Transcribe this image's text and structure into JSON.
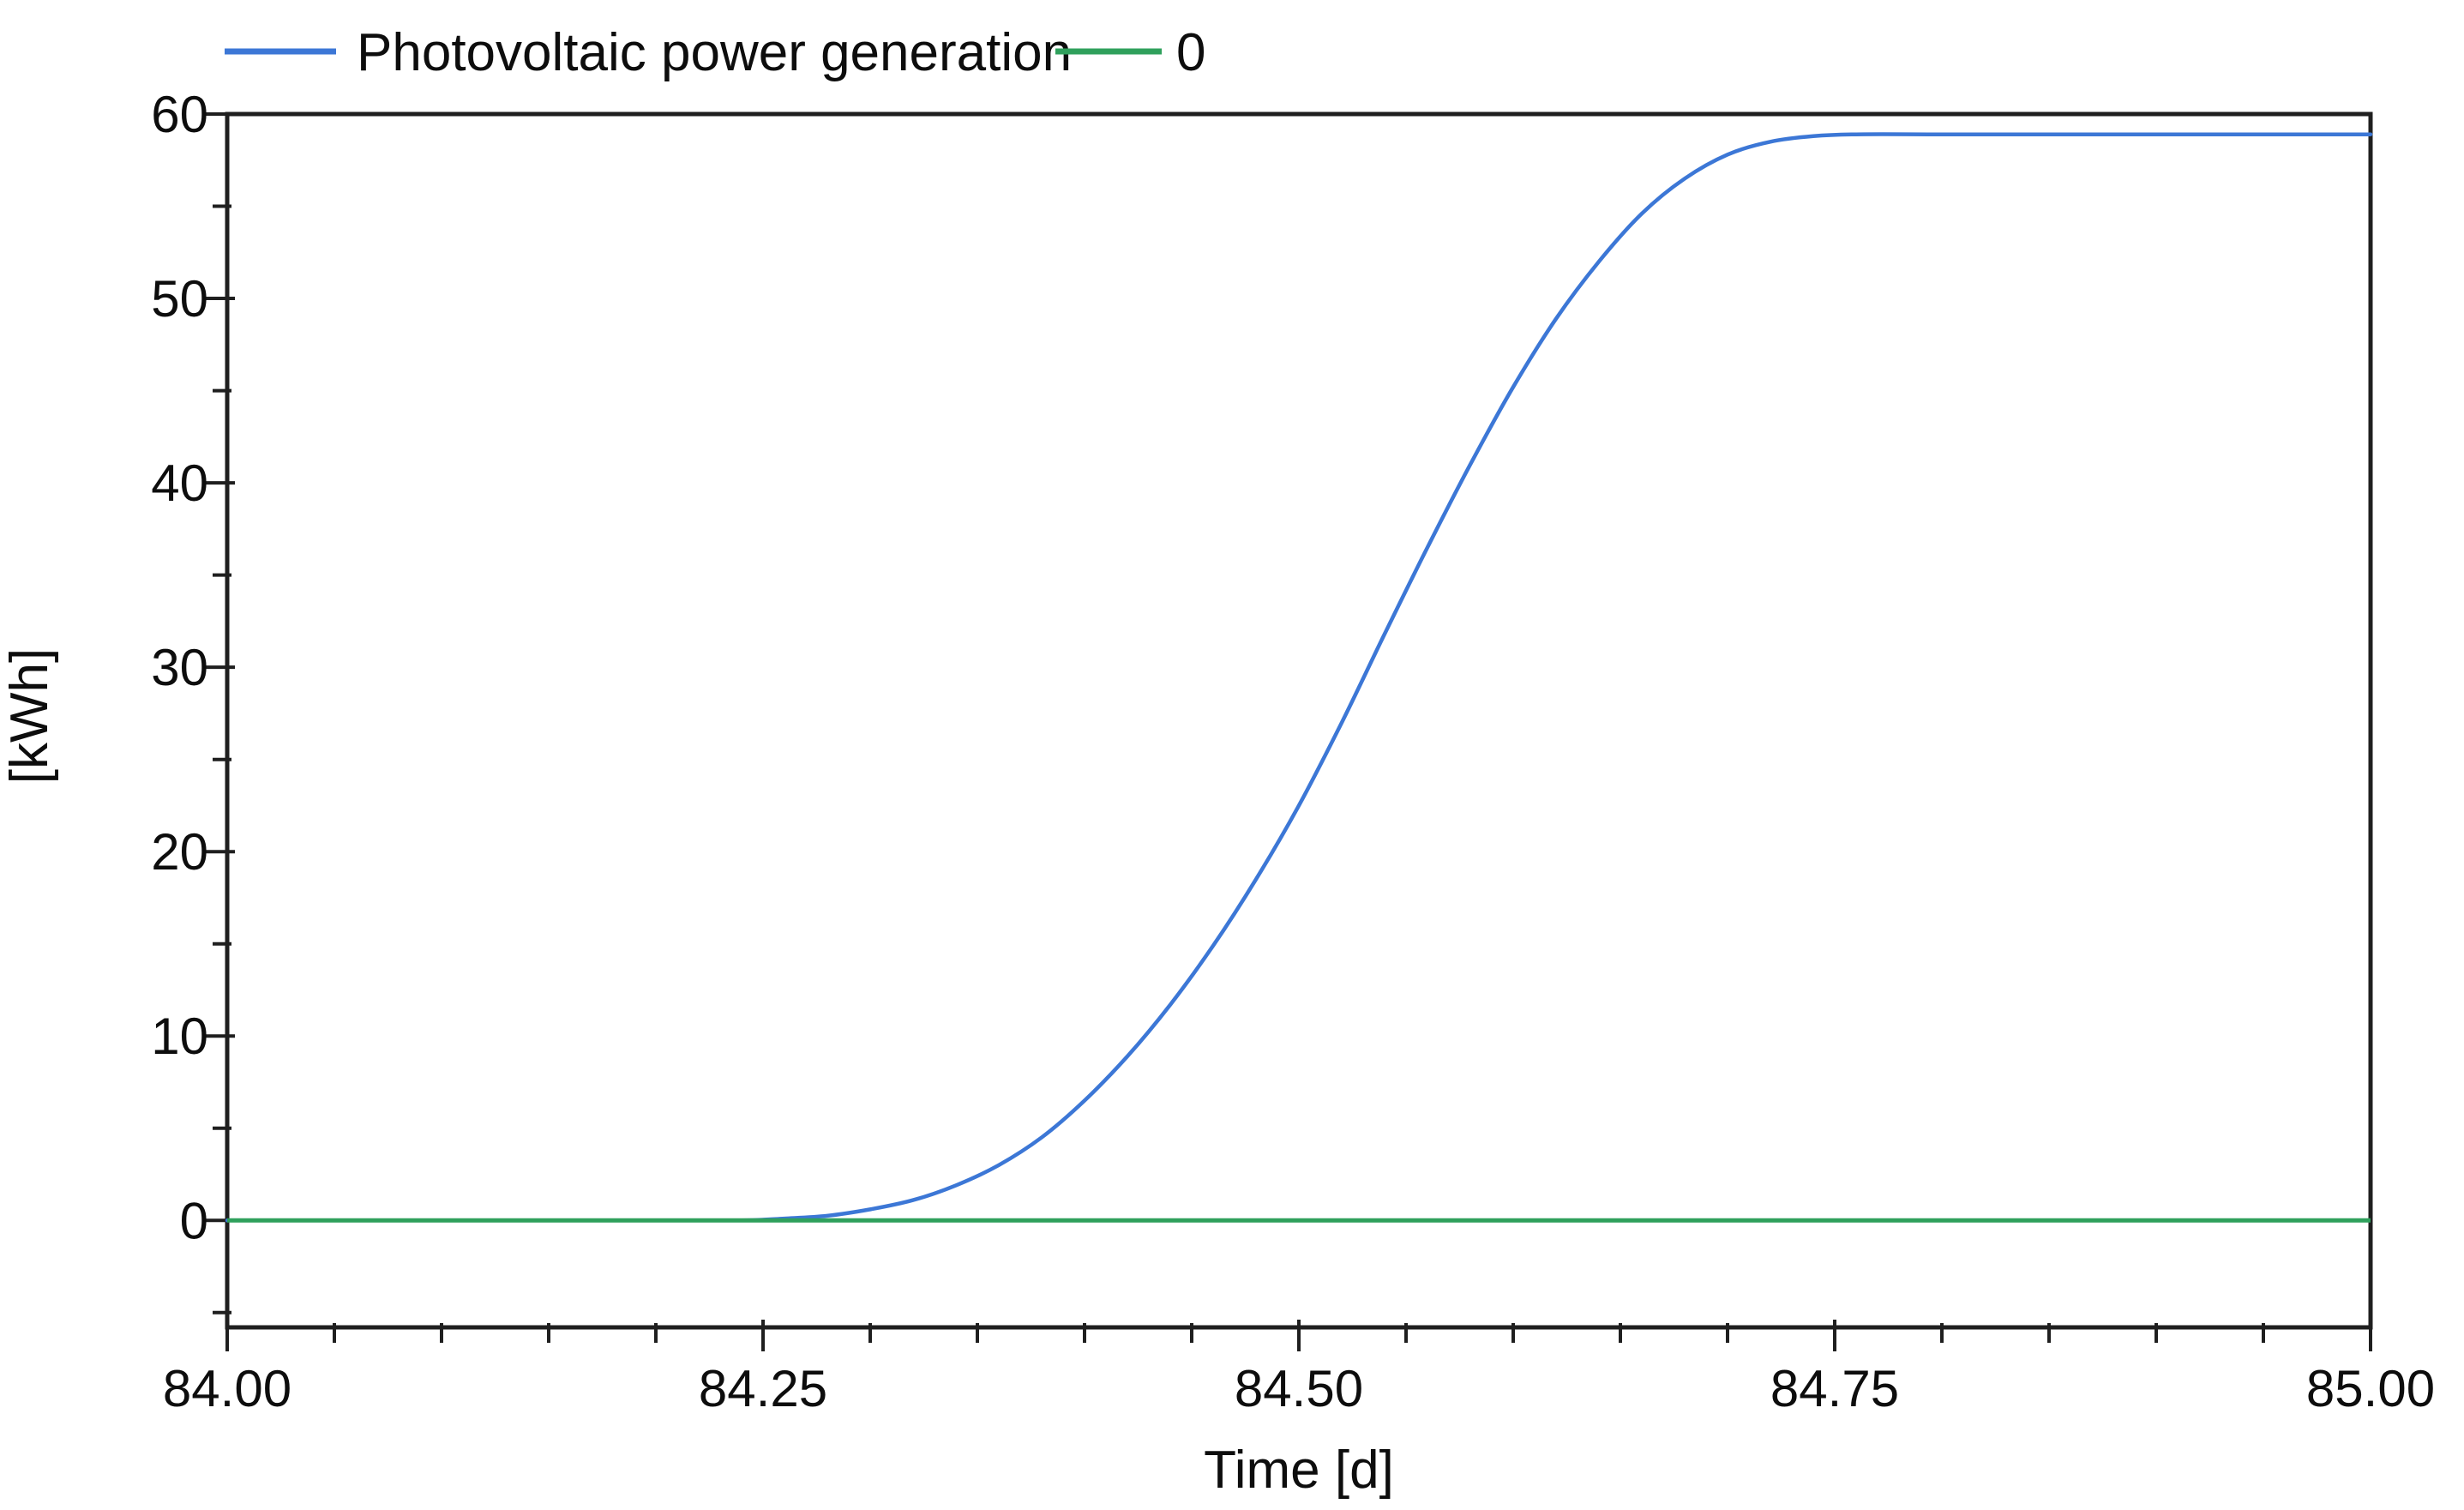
{
  "chart_data": {
    "type": "line",
    "title": "",
    "xlabel": "Time [d]",
    "ylabel": "[kWh]",
    "xlim": [
      84.0,
      85.0
    ],
    "ylim": [
      -5.8,
      60
    ],
    "x_major_ticks": [
      84.0,
      84.25,
      84.5,
      84.75,
      85.0
    ],
    "x_tick_labels": [
      "84.00",
      "84.25",
      "84.50",
      "84.75",
      "85.00"
    ],
    "x_minor_step": 0.05,
    "y_major_ticks": [
      0,
      10,
      20,
      30,
      40,
      50,
      60
    ],
    "y_tick_labels": [
      "0",
      "10",
      "20",
      "30",
      "40",
      "50",
      "60"
    ],
    "y_minor_ticks": [
      -5,
      5,
      15,
      25,
      35,
      45,
      55
    ],
    "grid": false,
    "legend_position": "top-left",
    "frame_color": "#1f1f1f",
    "background": "#ffffff",
    "series": [
      {
        "name": "Photovoltaic power generation",
        "color": "#3c77d6",
        "x": [
          84.0,
          84.05,
          84.1,
          84.15,
          84.2,
          84.24,
          84.26,
          84.28,
          84.3,
          84.32,
          84.34,
          84.36,
          84.38,
          84.4,
          84.42,
          84.44,
          84.46,
          84.48,
          84.5,
          84.52,
          84.54,
          84.56,
          84.58,
          84.6,
          84.62,
          84.64,
          84.66,
          84.68,
          84.7,
          84.72,
          84.74,
          84.76,
          84.8,
          84.85,
          84.9,
          84.95,
          85.0
        ],
        "y": [
          0,
          0,
          0,
          0,
          0,
          0,
          0.1,
          0.25,
          0.6,
          1.1,
          1.9,
          3.0,
          4.5,
          6.5,
          8.9,
          11.7,
          14.9,
          18.5,
          22.5,
          27.0,
          31.8,
          36.5,
          41.0,
          45.2,
          48.9,
          52.0,
          54.6,
          56.5,
          57.8,
          58.5,
          58.8,
          58.9,
          58.9,
          58.9,
          58.9,
          58.9,
          58.9
        ]
      },
      {
        "name": "0",
        "color": "#2fa05c",
        "x": [
          84.0,
          85.0
        ],
        "y": [
          0,
          0
        ]
      }
    ]
  }
}
